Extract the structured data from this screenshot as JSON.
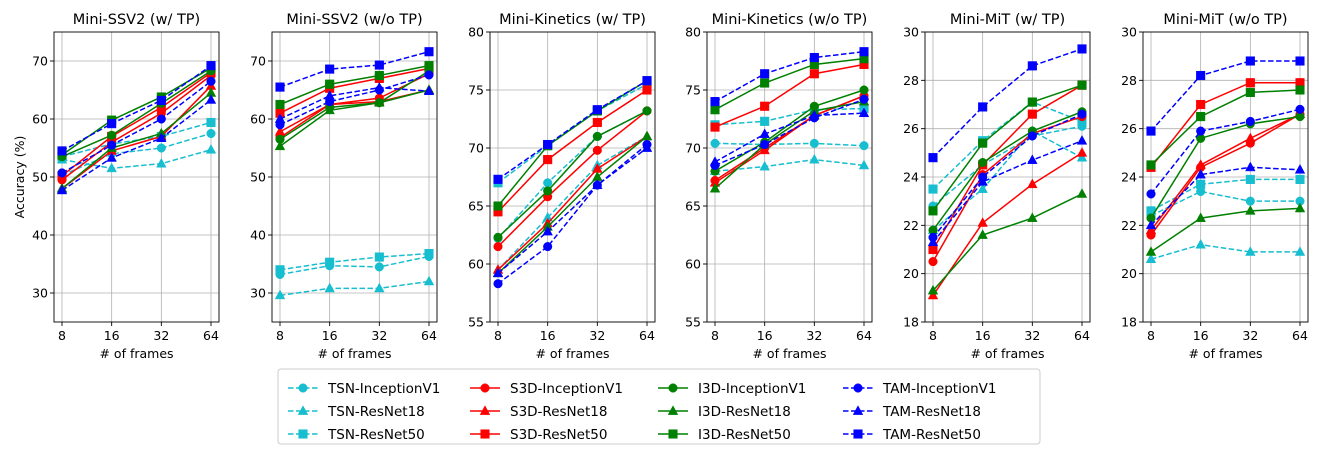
{
  "chart_data": [
    {
      "type": "line",
      "title": "Mini-SSV2 (w/ TP)",
      "xlabel": "# of frames",
      "ylabel": "Accuracy (%)",
      "x": [
        8,
        16,
        32,
        64
      ],
      "x_scale": "log2",
      "ylim": [
        25,
        75
      ],
      "yticks": [
        30,
        40,
        50,
        60,
        70
      ],
      "grid": true,
      "series": [
        {
          "name": "TSN-InceptionV1",
          "values": [
            50.3,
            54.0,
            55.0,
            57.5
          ]
        },
        {
          "name": "TSN-ResNet18",
          "values": [
            53.0,
            51.5,
            52.3,
            54.7
          ]
        },
        {
          "name": "TSN-ResNet50",
          "values": [
            53.5,
            55.7,
            57.0,
            59.4
          ]
        },
        {
          "name": "S3D-InceptionV1",
          "values": [
            49.5,
            56.0,
            61.0,
            67.5
          ]
        },
        {
          "name": "S3D-ResNet18",
          "values": [
            48.0,
            54.5,
            57.0,
            65.7
          ]
        },
        {
          "name": "S3D-ResNet50",
          "values": [
            50.2,
            57.0,
            62.0,
            68.0
          ]
        },
        {
          "name": "I3D-InceptionV1",
          "values": [
            53.5,
            57.2,
            62.7,
            68.3
          ]
        },
        {
          "name": "I3D-ResNet18",
          "values": [
            48.0,
            55.0,
            57.5,
            64.5
          ]
        },
        {
          "name": "I3D-ResNet50",
          "values": [
            53.8,
            59.8,
            63.8,
            68.8
          ]
        },
        {
          "name": "TAM-InceptionV1",
          "values": [
            50.7,
            55.5,
            60.0,
            66.5
          ]
        },
        {
          "name": "TAM-ResNet18",
          "values": [
            47.7,
            53.3,
            56.7,
            63.3
          ]
        },
        {
          "name": "TAM-ResNet50",
          "values": [
            54.5,
            59.2,
            63.2,
            69.2
          ]
        }
      ]
    },
    {
      "type": "line",
      "title": "Mini-SSV2 (w/o TP)",
      "xlabel": "# of frames",
      "ylabel": "",
      "x": [
        8,
        16,
        32,
        64
      ],
      "x_scale": "log2",
      "ylim": [
        25,
        75
      ],
      "yticks": [
        30,
        40,
        50,
        60,
        70
      ],
      "grid": true,
      "series": [
        {
          "name": "TSN-InceptionV1",
          "values": [
            33.2,
            34.7,
            34.5,
            36.3
          ]
        },
        {
          "name": "TSN-ResNet18",
          "values": [
            29.6,
            30.8,
            30.8,
            32.0
          ]
        },
        {
          "name": "TSN-ResNet50",
          "values": [
            34.0,
            35.3,
            36.2,
            36.8
          ]
        },
        {
          "name": "S3D-InceptionV1",
          "values": [
            56.8,
            62.5,
            63.6,
            67.8
          ]
        },
        {
          "name": "S3D-ResNet18",
          "values": [
            57.8,
            62.5,
            63.0,
            65.0
          ]
        },
        {
          "name": "S3D-ResNet50",
          "values": [
            61.0,
            65.3,
            67.0,
            68.7
          ]
        },
        {
          "name": "I3D-InceptionV1",
          "values": [
            56.5,
            62.0,
            62.8,
            68.3
          ]
        },
        {
          "name": "I3D-ResNet18",
          "values": [
            55.3,
            61.5,
            62.8,
            65.0
          ]
        },
        {
          "name": "I3D-ResNet50",
          "values": [
            62.5,
            66.0,
            67.5,
            69.2
          ]
        },
        {
          "name": "TAM-InceptionV1",
          "values": [
            59.0,
            63.0,
            65.0,
            67.6
          ]
        },
        {
          "name": "TAM-ResNet18",
          "values": [
            60.0,
            64.0,
            65.4,
            64.8
          ]
        },
        {
          "name": "TAM-ResNet50",
          "values": [
            65.5,
            68.6,
            69.3,
            71.6
          ]
        }
      ]
    },
    {
      "type": "line",
      "title": "Mini-Kinetics (w/ TP)",
      "xlabel": "# of frames",
      "ylabel": "",
      "x": [
        8,
        16,
        32,
        64
      ],
      "x_scale": "log2",
      "ylim": [
        55,
        80
      ],
      "yticks": [
        55,
        60,
        65,
        70,
        75,
        80
      ],
      "grid": true,
      "series": [
        {
          "name": "TSN-InceptionV1",
          "values": [
            62.2,
            67.0,
            71.0,
            73.2
          ]
        },
        {
          "name": "TSN-ResNet18",
          "values": [
            59.5,
            64.0,
            68.5,
            71.0
          ]
        },
        {
          "name": "TSN-ResNet50",
          "values": [
            67.0,
            70.2,
            73.2,
            75.5
          ]
        },
        {
          "name": "S3D-InceptionV1",
          "values": [
            61.5,
            65.8,
            69.8,
            73.2
          ]
        },
        {
          "name": "S3D-ResNet18",
          "values": [
            59.5,
            63.5,
            68.2,
            71.0
          ]
        },
        {
          "name": "S3D-ResNet50",
          "values": [
            64.5,
            69.0,
            72.2,
            75.0
          ]
        },
        {
          "name": "I3D-InceptionV1",
          "values": [
            62.3,
            66.3,
            71.0,
            73.2
          ]
        },
        {
          "name": "I3D-ResNet18",
          "values": [
            59.2,
            63.2,
            67.5,
            71.0
          ]
        },
        {
          "name": "I3D-ResNet50",
          "values": [
            65.0,
            70.2,
            73.2,
            75.8
          ]
        },
        {
          "name": "TAM-InceptionV1",
          "values": [
            58.3,
            61.5,
            66.8,
            70.3
          ]
        },
        {
          "name": "TAM-ResNet18",
          "values": [
            59.2,
            62.8,
            66.8,
            70.0
          ]
        },
        {
          "name": "TAM-ResNet50",
          "values": [
            67.3,
            70.3,
            73.3,
            75.8
          ]
        }
      ]
    },
    {
      "type": "line",
      "title": "Mini-Kinetics (w/o TP)",
      "xlabel": "# of frames",
      "ylabel": "",
      "x": [
        8,
        16,
        32,
        64
      ],
      "x_scale": "log2",
      "ylim": [
        55,
        80
      ],
      "yticks": [
        55,
        60,
        65,
        70,
        75,
        80
      ],
      "grid": true,
      "series": [
        {
          "name": "TSN-InceptionV1",
          "values": [
            70.4,
            70.3,
            70.4,
            70.2
          ]
        },
        {
          "name": "TSN-ResNet18",
          "values": [
            68.0,
            68.4,
            69.0,
            68.5
          ]
        },
        {
          "name": "TSN-ResNet50",
          "values": [
            72.0,
            72.3,
            73.3,
            73.4
          ]
        },
        {
          "name": "S3D-InceptionV1",
          "values": [
            67.2,
            70.0,
            72.8,
            74.5
          ]
        },
        {
          "name": "S3D-ResNet18",
          "values": [
            67.0,
            69.8,
            72.8,
            74.5
          ]
        },
        {
          "name": "S3D-ResNet50",
          "values": [
            71.8,
            73.6,
            76.4,
            77.2
          ]
        },
        {
          "name": "I3D-InceptionV1",
          "values": [
            68.0,
            70.5,
            73.6,
            75.0
          ]
        },
        {
          "name": "I3D-ResNet18",
          "values": [
            66.5,
            70.3,
            73.2,
            74.0
          ]
        },
        {
          "name": "I3D-ResNet50",
          "values": [
            73.3,
            75.6,
            77.2,
            77.7
          ]
        },
        {
          "name": "TAM-InceptionV1",
          "values": [
            68.5,
            70.3,
            72.6,
            74.2
          ]
        },
        {
          "name": "TAM-ResNet18",
          "values": [
            68.8,
            71.2,
            72.8,
            73.0
          ]
        },
        {
          "name": "TAM-ResNet50",
          "values": [
            74.0,
            76.4,
            77.8,
            78.3
          ]
        }
      ]
    },
    {
      "type": "line",
      "title": "Mini-MiT (w/ TP)",
      "xlabel": "# of frames",
      "ylabel": "",
      "x": [
        8,
        16,
        32,
        64
      ],
      "x_scale": "log2",
      "ylim": [
        18,
        30
      ],
      "yticks": [
        18,
        20,
        22,
        24,
        26,
        28,
        30
      ],
      "grid": true,
      "series": [
        {
          "name": "TSN-InceptionV1",
          "values": [
            22.8,
            24.5,
            25.7,
            26.1
          ]
        },
        {
          "name": "TSN-ResNet18",
          "values": [
            21.8,
            23.5,
            25.9,
            24.8
          ]
        },
        {
          "name": "TSN-ResNet50",
          "values": [
            23.5,
            25.5,
            27.1,
            26.3
          ]
        },
        {
          "name": "S3D-InceptionV1",
          "values": [
            20.5,
            24.1,
            25.8,
            26.5
          ]
        },
        {
          "name": "S3D-ResNet18",
          "values": [
            19.1,
            22.1,
            23.7,
            25.0
          ]
        },
        {
          "name": "S3D-ResNet50",
          "values": [
            21.0,
            24.5,
            26.6,
            27.8
          ]
        },
        {
          "name": "I3D-InceptionV1",
          "values": [
            21.8,
            24.6,
            25.9,
            26.7
          ]
        },
        {
          "name": "I3D-ResNet18",
          "values": [
            19.3,
            21.6,
            22.3,
            23.3
          ]
        },
        {
          "name": "I3D-ResNet50",
          "values": [
            22.6,
            25.4,
            27.1,
            27.8
          ]
        },
        {
          "name": "TAM-InceptionV1",
          "values": [
            21.5,
            24.0,
            25.7,
            26.6
          ]
        },
        {
          "name": "TAM-ResNet18",
          "values": [
            21.3,
            23.8,
            24.7,
            25.5
          ]
        },
        {
          "name": "TAM-ResNet50",
          "values": [
            24.8,
            26.9,
            28.6,
            29.3
          ]
        }
      ]
    },
    {
      "type": "line",
      "title": "Mini-MiT (w/o TP)",
      "xlabel": "# of frames",
      "ylabel": "",
      "x": [
        8,
        16,
        32,
        64
      ],
      "x_scale": "log2",
      "ylim": [
        18,
        30
      ],
      "yticks": [
        18,
        20,
        22,
        24,
        26,
        28,
        30
      ],
      "grid": true,
      "series": [
        {
          "name": "TSN-InceptionV1",
          "values": [
            22.4,
            23.4,
            23.0,
            23.0
          ]
        },
        {
          "name": "TSN-ResNet18",
          "values": [
            20.6,
            21.2,
            20.9,
            20.9
          ]
        },
        {
          "name": "TSN-ResNet50",
          "values": [
            22.6,
            23.7,
            23.9,
            23.9
          ]
        },
        {
          "name": "S3D-InceptionV1",
          "values": [
            21.6,
            24.4,
            25.4,
            26.6
          ]
        },
        {
          "name": "S3D-ResNet18",
          "values": [
            21.8,
            24.5,
            25.6,
            26.6
          ]
        },
        {
          "name": "S3D-ResNet50",
          "values": [
            24.4,
            27.0,
            27.9,
            27.9
          ]
        },
        {
          "name": "I3D-InceptionV1",
          "values": [
            22.3,
            25.6,
            26.2,
            26.5
          ]
        },
        {
          "name": "I3D-ResNet18",
          "values": [
            20.9,
            22.3,
            22.6,
            22.7
          ]
        },
        {
          "name": "I3D-ResNet50",
          "values": [
            24.5,
            26.5,
            27.5,
            27.6
          ]
        },
        {
          "name": "TAM-InceptionV1",
          "values": [
            23.3,
            25.9,
            26.3,
            26.8
          ]
        },
        {
          "name": "TAM-ResNet18",
          "values": [
            22.0,
            24.1,
            24.4,
            24.3
          ]
        },
        {
          "name": "TAM-ResNet50",
          "values": [
            25.9,
            28.2,
            28.8,
            28.8
          ]
        }
      ]
    }
  ],
  "legend": {
    "placement": "bottom-center",
    "entries": [
      {
        "label": "TSN-InceptionV1",
        "color": "#17becf",
        "marker": "circle",
        "dash": "dashed"
      },
      {
        "label": "TSN-ResNet18",
        "color": "#17becf",
        "marker": "triangle",
        "dash": "dashed"
      },
      {
        "label": "TSN-ResNet50",
        "color": "#17becf",
        "marker": "square",
        "dash": "dashed"
      },
      {
        "label": "S3D-InceptionV1",
        "color": "#ff0000",
        "marker": "circle",
        "dash": "solid"
      },
      {
        "label": "S3D-ResNet18",
        "color": "#ff0000",
        "marker": "triangle",
        "dash": "solid"
      },
      {
        "label": "S3D-ResNet50",
        "color": "#ff0000",
        "marker": "square",
        "dash": "solid"
      },
      {
        "label": "I3D-InceptionV1",
        "color": "#008000",
        "marker": "circle",
        "dash": "solid"
      },
      {
        "label": "I3D-ResNet18",
        "color": "#008000",
        "marker": "triangle",
        "dash": "solid"
      },
      {
        "label": "I3D-ResNet50",
        "color": "#008000",
        "marker": "square",
        "dash": "solid"
      },
      {
        "label": "TAM-InceptionV1",
        "color": "#0000ff",
        "marker": "circle",
        "dash": "dashed"
      },
      {
        "label": "TAM-ResNet18",
        "color": "#0000ff",
        "marker": "triangle",
        "dash": "dashed"
      },
      {
        "label": "TAM-ResNet50",
        "color": "#0000ff",
        "marker": "square",
        "dash": "dashed"
      }
    ]
  }
}
